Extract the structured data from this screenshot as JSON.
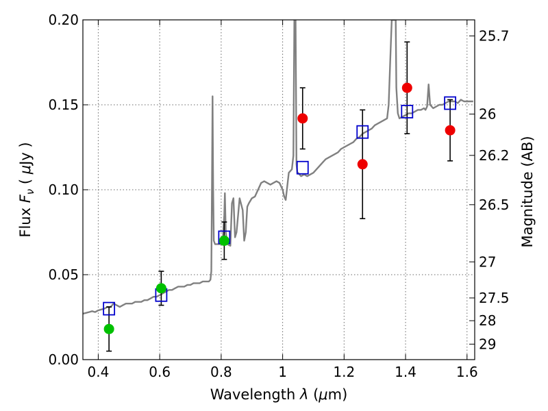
{
  "chart_data": {
    "type": "scatter",
    "xlabel_text": "Wavelength",
    "xlabel_symbol": "λ",
    "xlabel_unit_open": "(",
    "xlabel_unit_mu": "μ",
    "xlabel_unit_rest": "m)",
    "ylabel_text": "Flux",
    "ylabel_symbol": "F",
    "ylabel_sub": "ν",
    "ylabel_unit_open": "(",
    "ylabel_unit_mu": "μ",
    "ylabel_unit_rest": "Jy )",
    "y2label": "Magnitude (AB)",
    "xlim": [
      0.35,
      1.625
    ],
    "ylim": [
      0.0,
      0.2
    ],
    "grid": true,
    "xticks": [
      0.4,
      0.6,
      0.8,
      1.0,
      1.2,
      1.4,
      1.6
    ],
    "xtick_labels": [
      "0.4",
      "0.6",
      "0.8",
      "1",
      "1.2",
      "1.4",
      "1.6"
    ],
    "yticks": [
      0.0,
      0.05,
      0.1,
      0.15,
      0.2
    ],
    "ytick_labels": [
      "0.00",
      "0.05",
      "0.10",
      "0.15",
      "0.20"
    ],
    "y2ticks": [
      {
        "label": "25.7",
        "mag": 25.7
      },
      {
        "label": "26",
        "mag": 26.0
      },
      {
        "label": "26.2",
        "mag": 26.2
      },
      {
        "label": "26.5",
        "mag": 26.5
      },
      {
        "label": "27",
        "mag": 27.0
      },
      {
        "label": "27.5",
        "mag": 27.5
      },
      {
        "label": "28",
        "mag": 28.0
      },
      {
        "label": "29",
        "mag": 29.0
      }
    ],
    "colors": {
      "spectrum": "#808080",
      "model": "#0000cc",
      "green": "#00c000",
      "red": "#ee0000",
      "grid": "#666666",
      "errorbar": "#000000"
    },
    "spectrum": {
      "name": "",
      "x": [
        0.35,
        0.36,
        0.37,
        0.38,
        0.39,
        0.4,
        0.41,
        0.42,
        0.43,
        0.44,
        0.45,
        0.46,
        0.47,
        0.48,
        0.49,
        0.5,
        0.51,
        0.52,
        0.53,
        0.54,
        0.55,
        0.56,
        0.57,
        0.58,
        0.59,
        0.6,
        0.61,
        0.62,
        0.63,
        0.64,
        0.65,
        0.66,
        0.67,
        0.68,
        0.69,
        0.7,
        0.71,
        0.72,
        0.73,
        0.74,
        0.75,
        0.76,
        0.765,
        0.768,
        0.77,
        0.772,
        0.774,
        0.776,
        0.78,
        0.79,
        0.8,
        0.805,
        0.81,
        0.812,
        0.815,
        0.82,
        0.83,
        0.835,
        0.84,
        0.845,
        0.85,
        0.855,
        0.86,
        0.87,
        0.875,
        0.88,
        0.885,
        0.89,
        0.9,
        0.91,
        0.92,
        0.93,
        0.94,
        0.95,
        0.96,
        0.97,
        0.98,
        0.99,
        1.0,
        1.005,
        1.01,
        1.02,
        1.03,
        1.035,
        1.038,
        1.04,
        1.042,
        1.045,
        1.048,
        1.05,
        1.06,
        1.07,
        1.08,
        1.09,
        1.1,
        1.11,
        1.12,
        1.13,
        1.14,
        1.15,
        1.16,
        1.17,
        1.18,
        1.19,
        1.2,
        1.21,
        1.22,
        1.23,
        1.24,
        1.25,
        1.26,
        1.27,
        1.28,
        1.29,
        1.3,
        1.31,
        1.32,
        1.33,
        1.34,
        1.345,
        1.35,
        1.355,
        1.36,
        1.362,
        1.365,
        1.368,
        1.37,
        1.375,
        1.38,
        1.39,
        1.4,
        1.41,
        1.42,
        1.43,
        1.44,
        1.45,
        1.46,
        1.465,
        1.47,
        1.475,
        1.48,
        1.49,
        1.5,
        1.51,
        1.52,
        1.53,
        1.54,
        1.55,
        1.56,
        1.57,
        1.58,
        1.59,
        1.6,
        1.61,
        1.62
      ],
      "y": [
        0.027,
        0.0275,
        0.028,
        0.0285,
        0.028,
        0.029,
        0.0295,
        0.03,
        0.031,
        0.031,
        0.033,
        0.032,
        0.031,
        0.032,
        0.033,
        0.033,
        0.033,
        0.034,
        0.034,
        0.034,
        0.035,
        0.035,
        0.036,
        0.037,
        0.037,
        0.038,
        0.039,
        0.04,
        0.041,
        0.041,
        0.042,
        0.043,
        0.043,
        0.043,
        0.044,
        0.044,
        0.045,
        0.045,
        0.045,
        0.046,
        0.046,
        0.046,
        0.047,
        0.052,
        0.1,
        0.155,
        0.1,
        0.07,
        0.068,
        0.068,
        0.068,
        0.07,
        0.085,
        0.098,
        0.075,
        0.068,
        0.067,
        0.092,
        0.095,
        0.072,
        0.075,
        0.085,
        0.095,
        0.088,
        0.07,
        0.075,
        0.09,
        0.092,
        0.095,
        0.096,
        0.1,
        0.104,
        0.105,
        0.104,
        0.103,
        0.104,
        0.105,
        0.104,
        0.1,
        0.096,
        0.094,
        0.11,
        0.112,
        0.12,
        0.2,
        0.2,
        0.2,
        0.115,
        0.11,
        0.11,
        0.108,
        0.109,
        0.108,
        0.109,
        0.11,
        0.112,
        0.114,
        0.116,
        0.118,
        0.119,
        0.12,
        0.121,
        0.122,
        0.124,
        0.125,
        0.126,
        0.127,
        0.128,
        0.13,
        0.131,
        0.133,
        0.134,
        0.135,
        0.136,
        0.138,
        0.139,
        0.14,
        0.141,
        0.142,
        0.15,
        0.175,
        0.2,
        0.2,
        0.2,
        0.2,
        0.2,
        0.16,
        0.145,
        0.142,
        0.143,
        0.144,
        0.145,
        0.145,
        0.146,
        0.147,
        0.147,
        0.148,
        0.147,
        0.149,
        0.162,
        0.15,
        0.148,
        0.149,
        0.15,
        0.15,
        0.151,
        0.152,
        0.152,
        0.152,
        0.151,
        0.153,
        0.152,
        0.152,
        0.152,
        0.152
      ]
    },
    "model_points": {
      "marker": "open-square",
      "x": [
        0.435,
        0.605,
        0.81,
        1.065,
        1.26,
        1.405,
        1.545
      ],
      "y": [
        0.03,
        0.038,
        0.072,
        0.113,
        0.134,
        0.146,
        0.151
      ]
    },
    "observed_points": [
      {
        "x": 0.435,
        "y": 0.018,
        "err": 0.013,
        "color": "green"
      },
      {
        "x": 0.605,
        "y": 0.042,
        "err": 0.01,
        "color": "green"
      },
      {
        "x": 0.81,
        "y": 0.07,
        "err": 0.011,
        "color": "green"
      },
      {
        "x": 1.065,
        "y": 0.142,
        "err": 0.018,
        "color": "red"
      },
      {
        "x": 1.26,
        "y": 0.115,
        "err": 0.032,
        "color": "red"
      },
      {
        "x": 1.405,
        "y": 0.16,
        "err": 0.027,
        "color": "red"
      },
      {
        "x": 1.545,
        "y": 0.135,
        "err": 0.018,
        "color": "red"
      }
    ]
  }
}
